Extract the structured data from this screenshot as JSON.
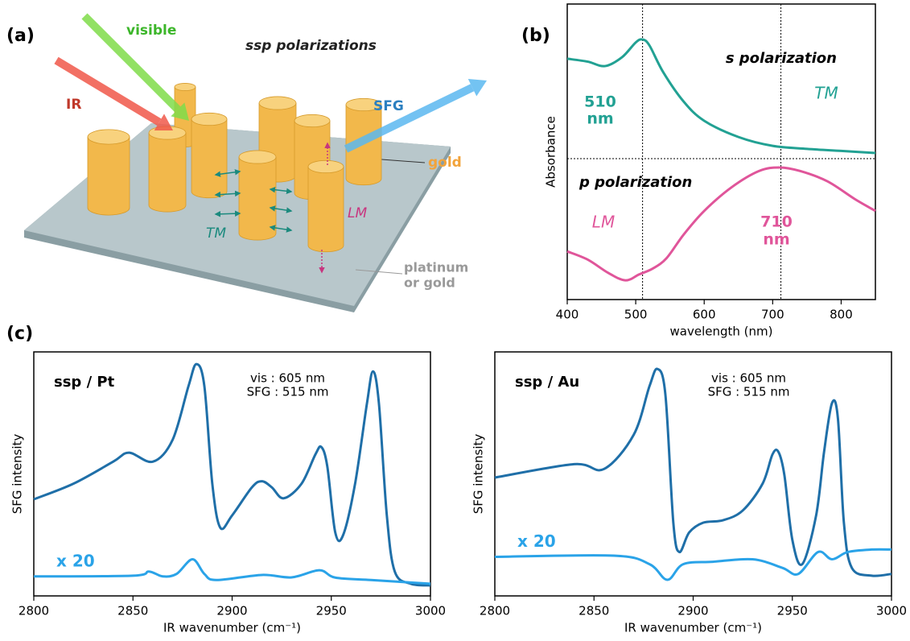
{
  "panel_labels": [
    "(a)",
    "(b)",
    "(c)"
  ],
  "diagram": {
    "title": "ssp polarizations",
    "visible": "visible",
    "ir": "IR",
    "sfg": "SFG",
    "gold": "gold",
    "lm": "LM",
    "tm": "TM",
    "substrate": [
      "platinum",
      "or gold"
    ]
  },
  "chart_data": [
    {
      "type": "line",
      "ylabel": "Absorbance",
      "xlabel": "wavelength (nm)",
      "xlim": [
        400,
        850
      ],
      "xticks": [
        400,
        500,
        600,
        700,
        800
      ],
      "ylim": [
        0,
        100
      ],
      "vlines": [
        510,
        712
      ],
      "hline": 47.7,
      "annotations": [
        "510",
        "nm",
        "710",
        "nm",
        "TM",
        "LM"
      ],
      "series": [
        {
          "name": "s polarization",
          "color": "#22a193",
          "x": [
            400,
            430,
            455,
            480,
            500,
            510,
            520,
            540,
            570,
            600,
            650,
            700,
            750,
            800,
            850
          ],
          "values": [
            81.5,
            80.5,
            79,
            82,
            87,
            88,
            86,
            77,
            67,
            60.5,
            55,
            52,
            51,
            50.3,
            49.6
          ]
        },
        {
          "name": "p polarization",
          "color": "#e0559a",
          "x": [
            400,
            430,
            460,
            485,
            505,
            525,
            545,
            570,
            600,
            640,
            680,
            710,
            740,
            780,
            820,
            850
          ],
          "values": [
            16.3,
            13.5,
            9,
            6.5,
            8.5,
            10.5,
            14,
            22,
            30,
            38,
            43.5,
            44.7,
            43.5,
            40,
            34,
            30
          ]
        }
      ]
    },
    {
      "type": "line",
      "title": "ssp / Pt",
      "annotations": [
        "vis : 605 nm",
        "SFG : 515 nm"
      ],
      "ylabel": "SFG intensity",
      "xlabel": "IR wavenumber (cm⁻¹)",
      "xlim": [
        2800,
        3000
      ],
      "xticks": [
        2800,
        2850,
        2900,
        2950,
        3000
      ],
      "ylim": [
        0,
        100
      ],
      "series": [
        {
          "color": "#1f6fa8",
          "x": [
            2800,
            2820,
            2840,
            2848,
            2860,
            2870,
            2878,
            2882,
            2886,
            2890,
            2894,
            2900,
            2910,
            2915,
            2920,
            2926,
            2935,
            2942,
            2945,
            2948,
            2952,
            2956,
            2962,
            2968,
            2971,
            2974,
            2978,
            2982,
            2990,
            3000
          ],
          "values": [
            39.6,
            46,
            55,
            58.7,
            55,
            64,
            86,
            95,
            86,
            46,
            28,
            33,
            44.5,
            47,
            44.5,
            40,
            46,
            58,
            61,
            53,
            26,
            25,
            46,
            79,
            92,
            79,
            33,
            10,
            5,
            4.3
          ]
        },
        {
          "name": "x 20",
          "color": "#2aa3e8",
          "x": [
            2800,
            2850,
            2858,
            2865,
            2872,
            2880,
            2886,
            2892,
            2915,
            2930,
            2944,
            2952,
            2970,
            2990,
            3000
          ],
          "values": [
            8,
            8.3,
            10,
            8,
            9,
            15,
            9,
            6.5,
            8.6,
            7.6,
            10.5,
            7.5,
            6.5,
            5.5,
            5
          ]
        }
      ]
    },
    {
      "type": "line",
      "title": "ssp / Au",
      "annotations": [
        "vis : 605 nm",
        "SFG : 515 nm"
      ],
      "ylabel": "SFG intensity",
      "xlabel": "IR wavenumber (cm⁻¹)",
      "xlim": [
        2800,
        3000
      ],
      "xticks": [
        2800,
        2850,
        2900,
        2950,
        3000
      ],
      "ylim": [
        0,
        100
      ],
      "series": [
        {
          "color": "#1f6fa8",
          "x": [
            2800,
            2840,
            2855,
            2870,
            2878,
            2882,
            2886,
            2890,
            2893,
            2898,
            2905,
            2915,
            2925,
            2935,
            2940,
            2943,
            2946,
            2950,
            2955,
            2962,
            2966,
            2970,
            2973,
            2976,
            2980,
            2990,
            3000
          ],
          "values": [
            48.5,
            54,
            52,
            66,
            86,
            93,
            82.5,
            30,
            18,
            26,
            30,
            31,
            35,
            46,
            58,
            59,
            49.5,
            23,
            13,
            33,
            59,
            79,
            72.6,
            30,
            11.5,
            8.3,
            9
          ]
        },
        {
          "name": "x 20",
          "color": "#2aa3e8",
          "x": [
            2800,
            2860,
            2878,
            2887,
            2895,
            2910,
            2930,
            2945,
            2953,
            2963,
            2970,
            2978,
            2990,
            3000
          ],
          "values": [
            16,
            16.5,
            13,
            6.6,
            13,
            14,
            15,
            11.5,
            9,
            18,
            15,
            18,
            19,
            19
          ]
        }
      ]
    }
  ]
}
